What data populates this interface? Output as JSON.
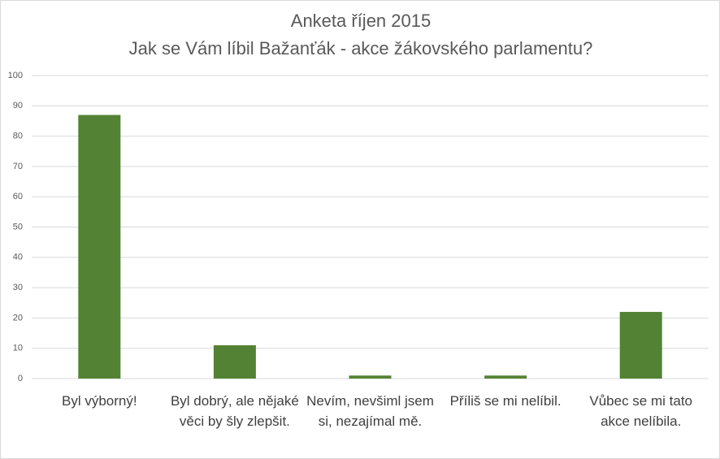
{
  "chart_data": {
    "type": "bar",
    "title": "Anketa říjen 2015",
    "subtitle": "Jak se Vám líbil Bažanťák - akce žákovského parlamentu?",
    "categories": [
      "Byl výborný!",
      "Byl dobrý, ale nějaké věci by šly zlepšit.",
      "Nevím, nevšiml jsem si, nezajímal mě.",
      "Příliš se mi nelíbil.",
      "Vůbec se mi tato akce nelíbila."
    ],
    "values": [
      87,
      11,
      1,
      1,
      22
    ],
    "color": "#548235",
    "ylim": [
      0,
      100
    ],
    "yticks": [
      0,
      10,
      20,
      30,
      40,
      50,
      60,
      70,
      80,
      90,
      100
    ],
    "grid": true
  }
}
